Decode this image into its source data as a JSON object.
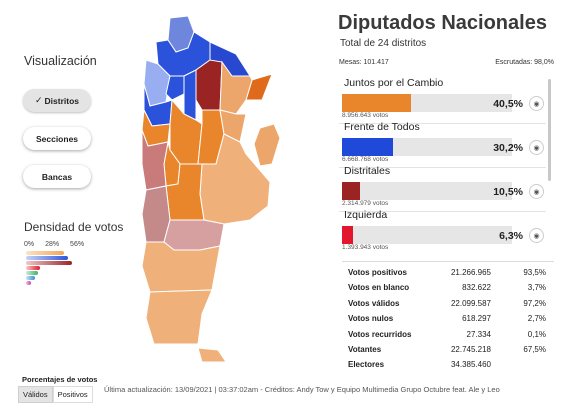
{
  "visualization": {
    "title": "Visualización",
    "buttons": [
      {
        "label": "Distritos",
        "active": true
      },
      {
        "label": "Secciones",
        "active": false
      },
      {
        "label": "Bancas",
        "active": false
      }
    ]
  },
  "density": {
    "title": "Densidad de votos",
    "scale": [
      "0%",
      "28%",
      "56%"
    ]
  },
  "header": {
    "title": "Diputados Nacionales",
    "subtitle": "Total de 24 distritos",
    "mesas": "Mesas: 101.417",
    "escrutadas": "Escrutadas: 98,0%"
  },
  "parties": [
    {
      "name": "Juntos por el Cambio",
      "votes": "8.956.643 votos",
      "pct": "40,5%",
      "share": 0.405,
      "color": "#e9862c"
    },
    {
      "name": "Frente de Todos",
      "votes": "6.668.768 votos",
      "pct": "30,2%",
      "share": 0.302,
      "color": "#1f49d9"
    },
    {
      "name": "Distritales",
      "votes": "2.314.979 votos",
      "pct": "10,5%",
      "share": 0.105,
      "color": "#9a2424"
    },
    {
      "name": "Izquierda",
      "votes": "1.393.943 votos",
      "pct": "6,3%",
      "share": 0.063,
      "color": "#e3162d"
    }
  ],
  "stats": [
    {
      "label": "Votos positivos",
      "value": "21.266.965",
      "pct": "93,5%"
    },
    {
      "label": "Votos en blanco",
      "value": "832.622",
      "pct": "3,7%"
    },
    {
      "label": "Votos válidos",
      "value": "22.099.587",
      "pct": "97,2%"
    },
    {
      "label": "Votos nulos",
      "value": "618.297",
      "pct": "2,7%"
    },
    {
      "label": "Votos recurridos",
      "value": "27.334",
      "pct": "0,1%"
    },
    {
      "label": "Votantes",
      "value": "22.745.218",
      "pct": "67,5%"
    },
    {
      "label": "Electores",
      "value": "34.385.460",
      "pct": ""
    }
  ],
  "footer": {
    "title": "Porcentajes de votos",
    "tabs": [
      "Válidos",
      "Positivos"
    ],
    "active_tab": "Válidos",
    "update": "Última actualización: 13/09/2021 | 03:37:02am - Créditos: Andy Tow y Equipo Multimedia Grupo Octubre feat. Ale y Leo"
  }
}
